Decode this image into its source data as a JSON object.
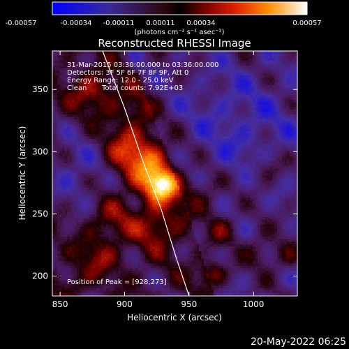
{
  "chart_data": {
    "type": "heatmap",
    "title": "Reconstructed RHESSI Image",
    "xlabel": "Heliocentric X (arcsec)",
    "ylabel": "Heliocentric Y (arcsec)",
    "xlim": [
      844,
      1034
    ],
    "ylim": [
      184,
      381
    ],
    "x_ticks": [
      "850",
      "900",
      "950",
      "1000"
    ],
    "y_ticks": [
      "200",
      "250",
      "300",
      "350"
    ],
    "colorbar": {
      "ticks": [
        "-0.00057",
        "-0.00034",
        "-0.00011",
        "0.00011",
        "0.00034",
        "0.00057"
      ],
      "range": [
        -0.00057,
        0.00057
      ],
      "unit_label": "(photons cm⁻² s⁻¹ asec⁻²)"
    },
    "annotations": {
      "time_range": "31-Mar-2015 03:30:00.000 to 03:36:00.000",
      "detectors": "Detectors: 3F 5F 6F 7F 8F 9F, Att 0",
      "energy": "Energy Range: 12.0 - 25.0 keV",
      "clean_label": "Clean",
      "total_counts": "Total counts: 7.92E+03",
      "peak": "Position of Peak = [928,273]"
    },
    "peak": {
      "x": 928,
      "y": 273
    },
    "limb_curve": [
      [
        883,
        381
      ],
      [
        900,
        335
      ],
      [
        915,
        290
      ],
      [
        928,
        255
      ],
      [
        940,
        215
      ],
      [
        950,
        184
      ]
    ],
    "sources": [
      {
        "x": 928,
        "y": 273,
        "amp": 1.0,
        "sigma": 10
      },
      {
        "x": 917,
        "y": 292,
        "amp": 0.55,
        "sigma": 16
      },
      {
        "x": 900,
        "y": 300,
        "amp": 0.4,
        "sigma": 14
      },
      {
        "x": 875,
        "y": 348,
        "amp": 0.45,
        "sigma": 12
      },
      {
        "x": 908,
        "y": 335,
        "amp": 0.3,
        "sigma": 12
      },
      {
        "x": 925,
        "y": 240,
        "amp": 0.45,
        "sigma": 13
      },
      {
        "x": 890,
        "y": 245,
        "amp": 0.35,
        "sigma": 12
      },
      {
        "x": 880,
        "y": 215,
        "amp": 0.35,
        "sigma": 11
      },
      {
        "x": 968,
        "y": 202,
        "amp": 0.55,
        "sigma": 7
      },
      {
        "x": 975,
        "y": 237,
        "amp": 0.35,
        "sigma": 9
      },
      {
        "x": 958,
        "y": 265,
        "amp": 0.35,
        "sigma": 12
      },
      {
        "x": 1005,
        "y": 220,
        "amp": 0.28,
        "sigma": 9
      },
      {
        "x": 1010,
        "y": 285,
        "amp": 0.28,
        "sigma": 9
      },
      {
        "x": 1025,
        "y": 215,
        "amp": 0.25,
        "sigma": 8
      },
      {
        "x": 860,
        "y": 195,
        "amp": 0.25,
        "sigma": 8
      }
    ]
  },
  "footer_date": "20-May-2022 06:25"
}
